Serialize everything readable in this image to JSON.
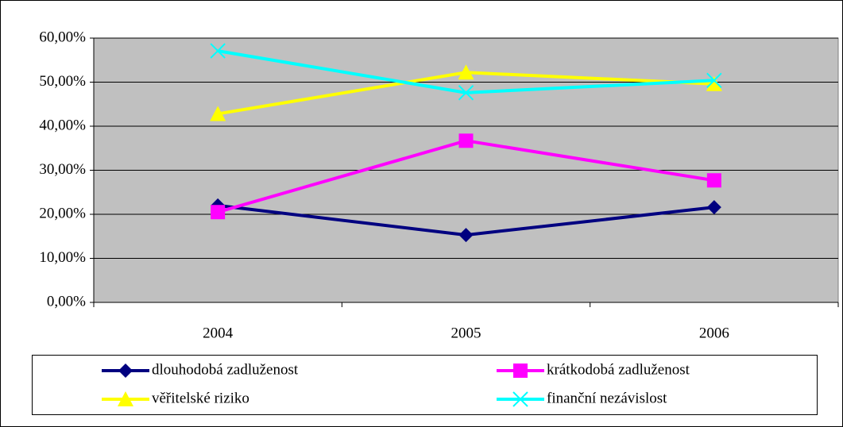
{
  "chart_data": {
    "type": "line",
    "categories": [
      "2004",
      "2005",
      "2006"
    ],
    "series": [
      {
        "name": "dlouhodobá zadluženost",
        "color": "#000080",
        "marker": "diamond",
        "values": [
          22.0,
          15.3,
          21.6
        ]
      },
      {
        "name": "krátkodobá zadluženost",
        "color": "#ff00ff",
        "marker": "square",
        "values": [
          20.5,
          36.7,
          27.7
        ]
      },
      {
        "name": "věřitelské riziko",
        "color": "#ffff00",
        "marker": "triangle",
        "values": [
          42.8,
          52.2,
          49.6
        ]
      },
      {
        "name": "finanční nezávislost",
        "color": "#00ffff",
        "marker": "x",
        "values": [
          57.1,
          47.6,
          50.4
        ]
      }
    ],
    "ylim": [
      0,
      60
    ],
    "yticks": [
      {
        "value": 0,
        "label": "0,00%"
      },
      {
        "value": 10,
        "label": "10,00%"
      },
      {
        "value": 20,
        "label": "20,00%"
      },
      {
        "value": 30,
        "label": "30,00%"
      },
      {
        "value": 40,
        "label": "40,00%"
      },
      {
        "value": 50,
        "label": "50,00%"
      },
      {
        "value": 60,
        "label": "60,00%"
      }
    ],
    "grid": true,
    "plot_background": "#c0c0c0",
    "legend": "bottom"
  }
}
